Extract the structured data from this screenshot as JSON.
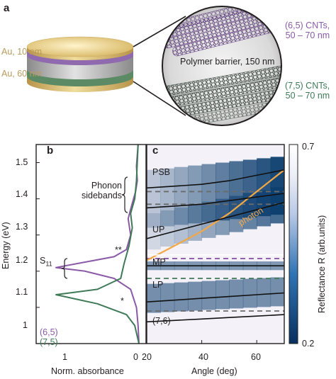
{
  "panel_a": {
    "letter": "a",
    "layer_top": "Au, 10 nm",
    "layer_bottom": "Au, 60 nm",
    "barrier": "Polymer barrier, 150 nm",
    "cnt65": [
      "(6,5) CNTs,",
      "50 – 70 nm"
    ],
    "cnt75": [
      "(7,5) CNTs,",
      "50 – 70 nm"
    ]
  },
  "panel_b": {
    "letter": "b",
    "ylabel": "Energy (eV)",
    "xlabel": "Norm. absorbance",
    "yticks": [
      "1.5",
      "1.4",
      "1.3",
      "1.2",
      "1.1",
      "1"
    ],
    "xticks": [
      "1",
      "0"
    ],
    "phonon": [
      "Phonon",
      "sidebands"
    ],
    "s11": "S",
    "s11_sub": "11",
    "star_double": "**",
    "star_single": "*",
    "legend": [
      "(6,5)",
      "(7,5)"
    ]
  },
  "panel_c": {
    "letter": "c",
    "xlabel": "Angle (deg)",
    "xticks": [
      "20",
      "40",
      "60"
    ],
    "branches": [
      "PSB",
      "UP",
      "MP",
      "LP",
      "(7,6)"
    ],
    "photon": "photon",
    "colorbar_label": "Reflectance R (arb.units)",
    "colorbar_ticks": [
      "0.7",
      "0.2"
    ]
  },
  "colors": {
    "cnt65": "#8a5aa6",
    "cnt75": "#3f7a57",
    "gold": "#d9c07a",
    "photon": "#f2a844",
    "map_dark": "#0b3d6e"
  },
  "chart_data": [
    {
      "type": "line",
      "panel": "b",
      "title": "",
      "xlabel": "Norm. absorbance",
      "ylabel": "Energy (eV)",
      "ylim": [
        1.0,
        1.55
      ],
      "xlim": [
        1.0,
        0.0
      ],
      "series": [
        {
          "name": "(6,5)",
          "x": [
            0.0,
            0.01,
            0.03,
            0.1,
            0.3,
            0.65,
            1.0,
            0.65,
            0.3,
            0.15,
            0.1,
            0.13,
            0.09,
            0.04,
            0.02,
            0.03,
            0.01
          ],
          "y": [
            1.0,
            1.05,
            1.1,
            1.15,
            1.18,
            1.2,
            1.21,
            1.225,
            1.24,
            1.26,
            1.3,
            1.345,
            1.38,
            1.42,
            1.45,
            1.49,
            1.55
          ]
        },
        {
          "name": "(7,5)",
          "x": [
            0.0,
            0.05,
            0.15,
            0.5,
            1.0,
            0.5,
            0.22,
            0.18,
            0.12,
            0.08,
            0.1,
            0.05,
            0.03,
            0.01
          ],
          "y": [
            1.0,
            1.05,
            1.08,
            1.11,
            1.135,
            1.15,
            1.18,
            1.22,
            1.27,
            1.32,
            1.36,
            1.4,
            1.45,
            1.55
          ]
        }
      ]
    },
    {
      "type": "heatmap",
      "panel": "c",
      "xlabel": "Angle (deg)",
      "ylabel": "Energy (eV)",
      "xlim": [
        20,
        70
      ],
      "ylim": [
        1.0,
        1.55
      ],
      "colorbar": {
        "label": "Reflectance R (arb.units)",
        "range": [
          0.2,
          0.7
        ]
      },
      "dashed_levels": [
        {
          "name": "PSB",
          "y": 1.42,
          "color": "gray"
        },
        {
          "name": "PSB",
          "y": 1.385,
          "color": "gray"
        },
        {
          "name": "UP",
          "y": 1.235,
          "color": "purple"
        },
        {
          "name": "MP",
          "y": 1.18,
          "color": "green"
        },
        {
          "name": "LP",
          "y": 1.09,
          "color": "gray"
        }
      ],
      "series": [
        {
          "name": "photon",
          "x": [
            20,
            30,
            40,
            50,
            60,
            70
          ],
          "y": [
            1.23,
            1.27,
            1.31,
            1.36,
            1.42,
            1.48
          ]
        },
        {
          "name": "PSB",
          "x": [
            20,
            30,
            40,
            50,
            60,
            70
          ],
          "y": [
            1.43,
            1.435,
            1.44,
            1.45,
            1.465,
            1.48
          ]
        },
        {
          "name": "PSB",
          "x": [
            20,
            30,
            40,
            50,
            60,
            70
          ],
          "y": [
            1.375,
            1.38,
            1.385,
            1.395,
            1.405,
            1.415
          ]
        },
        {
          "name": "UP",
          "x": [
            20,
            30,
            40,
            50,
            60,
            70
          ],
          "y": [
            1.29,
            1.31,
            1.33,
            1.35,
            1.37,
            1.39
          ]
        },
        {
          "name": "MP",
          "x": [
            20,
            30,
            40,
            50,
            60,
            70
          ],
          "y": [
            1.215,
            1.215,
            1.215,
            1.215,
            1.215,
            1.215
          ]
        },
        {
          "name": "LP",
          "x": [
            20,
            30,
            40,
            50,
            60,
            70
          ],
          "y": [
            1.115,
            1.12,
            1.125,
            1.13,
            1.135,
            1.14
          ]
        },
        {
          "name": "(7,6)",
          "x": [
            20,
            30,
            40,
            50,
            60,
            70
          ],
          "y": [
            1.06,
            1.064,
            1.068,
            1.072,
            1.076,
            1.08
          ]
        }
      ]
    }
  ]
}
